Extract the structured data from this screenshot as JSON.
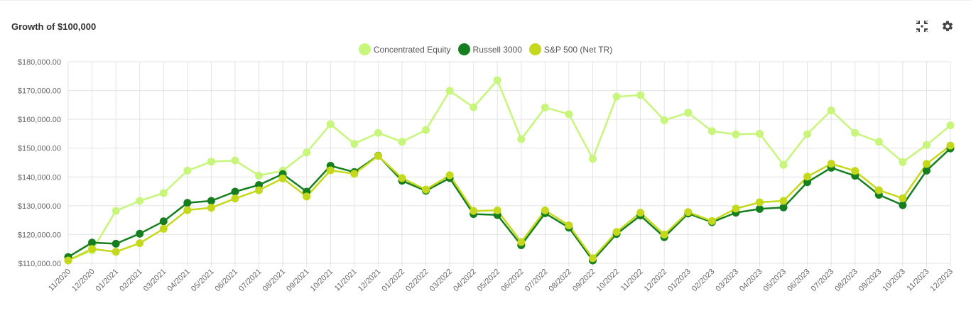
{
  "header": {
    "title": "Growth of $100,000"
  },
  "toolbar": {
    "collapse_icon": "collapse-icon",
    "settings_icon": "gear-icon"
  },
  "chart_data": {
    "type": "line",
    "title": "Growth of $100,000",
    "xlabel": "",
    "ylabel": "",
    "ylim": [
      110000,
      180000
    ],
    "ytick_step": 10000,
    "yticks": [
      "$110,000.00",
      "$120,000.00",
      "$130,000.00",
      "$140,000.00",
      "$150,000.00",
      "$160,000.00",
      "$170,000.00",
      "$180,000.00"
    ],
    "legend_position": "top-center",
    "grid": true,
    "categories": [
      "11/2020",
      "12/2020",
      "01/2021",
      "02/2021",
      "03/2021",
      "04/2021",
      "05/2021",
      "06/2021",
      "07/2021",
      "08/2021",
      "09/2021",
      "10/2021",
      "11/2021",
      "12/2021",
      "01/2022",
      "02/2022",
      "03/2022",
      "04/2022",
      "05/2022",
      "06/2022",
      "07/2022",
      "08/2022",
      "09/2022",
      "10/2022",
      "11/2022",
      "12/2022",
      "01/2023",
      "02/2023",
      "03/2023",
      "04/2023",
      "05/2023",
      "06/2023",
      "07/2023",
      "08/2023",
      "09/2023",
      "10/2023",
      "11/2023",
      "12/2023"
    ],
    "series": [
      {
        "name": "Concentrated Equity",
        "color": "#c8f57c",
        "values": [
          111000,
          114500,
          128200,
          131700,
          134400,
          142200,
          145300,
          145700,
          140500,
          142200,
          148500,
          158300,
          151500,
          155300,
          152200,
          156300,
          169900,
          164200,
          173600,
          153100,
          164100,
          161800,
          146300,
          167900,
          168400,
          159700,
          162300,
          155900,
          154800,
          155000,
          144200,
          154900,
          163100,
          155300,
          152200,
          145200,
          151100,
          157900
        ]
      },
      {
        "name": "Russell 3000",
        "color": "#157f1f",
        "values": [
          112200,
          117200,
          116800,
          120300,
          124600,
          131000,
          131700,
          134900,
          137200,
          141000,
          134900,
          143900,
          141700,
          147400,
          138700,
          135200,
          139600,
          127100,
          126800,
          116300,
          127400,
          122400,
          111000,
          120200,
          126600,
          119100,
          127300,
          124300,
          127600,
          128900,
          129400,
          138200,
          143200,
          140400,
          133800,
          130200,
          142200,
          149900
        ]
      },
      {
        "name": "S&P 500 (Net TR)",
        "color": "#c5d91c",
        "values": [
          111000,
          115000,
          114000,
          117000,
          122000,
          128500,
          129300,
          132500,
          135400,
          139500,
          133200,
          142300,
          141100,
          147300,
          139600,
          135600,
          140600,
          128200,
          128400,
          117400,
          128400,
          123200,
          111800,
          120900,
          127600,
          120000,
          127800,
          124700,
          129000,
          131200,
          131700,
          140100,
          144600,
          142100,
          135400,
          132600,
          144500,
          150900
        ]
      }
    ]
  }
}
